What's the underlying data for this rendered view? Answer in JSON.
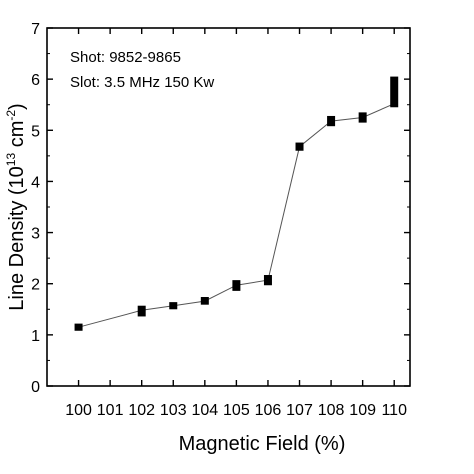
{
  "chart_data": {
    "type": "line",
    "xlabel": "Magnetic Field (%)",
    "ylabel_main": "Line Density (10",
    "ylabel_exp1": "13",
    "ylabel_mid": " cm",
    "ylabel_exp2": "-2",
    "ylabel_close": ")",
    "annotations": [
      "Shot: 9852-9865",
      "Slot: 3.5 MHz 150 Kw"
    ],
    "xlim": [
      99,
      110.5
    ],
    "ylim": [
      0,
      7
    ],
    "xticks": [
      100,
      101,
      102,
      103,
      104,
      105,
      106,
      107,
      108,
      109,
      110
    ],
    "yticks": [
      0,
      1,
      2,
      3,
      4,
      5,
      6,
      7
    ],
    "grid": false,
    "series": [
      {
        "x": [
          100,
          102,
          103,
          104,
          105,
          106,
          107,
          108,
          109,
          110
        ],
        "y": [
          1.15,
          1.48,
          1.57,
          1.66,
          1.97,
          2.07,
          4.68,
          5.18,
          5.25,
          5.52
        ],
        "y_low": [
          1.08,
          1.36,
          1.5,
          1.59,
          1.86,
          1.97,
          4.6,
          5.08,
          5.15,
          5.45
        ],
        "y_high": [
          1.22,
          1.57,
          1.64,
          1.74,
          2.07,
          2.17,
          4.76,
          5.28,
          5.35,
          6.05
        ]
      }
    ]
  },
  "colors": {
    "line": "#555555",
    "marker": "#000000",
    "axis": "#000000"
  }
}
